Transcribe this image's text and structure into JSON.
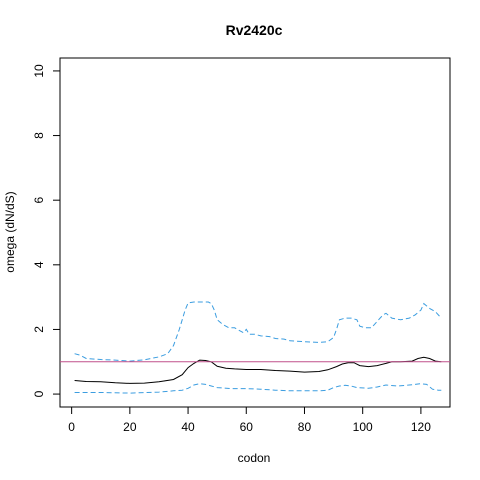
{
  "chart_data": {
    "type": "line",
    "title": "Rv2420c",
    "xlabel": "codon",
    "ylabel": "omega (dN/dS)",
    "xlim": [
      -4,
      130
    ],
    "ylim": [
      -0.4,
      10.4
    ],
    "x_ticks": [
      0,
      20,
      40,
      60,
      80,
      100,
      120
    ],
    "y_ticks": [
      0,
      2,
      4,
      6,
      8,
      10
    ],
    "reference_line": {
      "y": 1,
      "color": "#c0508c"
    },
    "grid": false,
    "series": [
      {
        "style": "solid",
        "color": "#000000",
        "points": [
          [
            1,
            0.42
          ],
          [
            5,
            0.39
          ],
          [
            10,
            0.38
          ],
          [
            15,
            0.35
          ],
          [
            20,
            0.33
          ],
          [
            25,
            0.34
          ],
          [
            30,
            0.38
          ],
          [
            35,
            0.45
          ],
          [
            38,
            0.6
          ],
          [
            40,
            0.82
          ],
          [
            42,
            0.95
          ],
          [
            44,
            1.05
          ],
          [
            46,
            1.04
          ],
          [
            48,
            1.0
          ],
          [
            50,
            0.86
          ],
          [
            53,
            0.8
          ],
          [
            56,
            0.78
          ],
          [
            60,
            0.76
          ],
          [
            65,
            0.76
          ],
          [
            70,
            0.73
          ],
          [
            75,
            0.71
          ],
          [
            80,
            0.68
          ],
          [
            85,
            0.7
          ],
          [
            88,
            0.75
          ],
          [
            91,
            0.85
          ],
          [
            93,
            0.93
          ],
          [
            95,
            0.97
          ],
          [
            97,
            0.97
          ],
          [
            99,
            0.88
          ],
          [
            102,
            0.85
          ],
          [
            105,
            0.88
          ],
          [
            108,
            0.95
          ],
          [
            110,
            1.0
          ],
          [
            113,
            1.0
          ],
          [
            117,
            1.02
          ],
          [
            119,
            1.1
          ],
          [
            121,
            1.14
          ],
          [
            123,
            1.1
          ],
          [
            125,
            1.02
          ],
          [
            127,
            1.0
          ]
        ]
      },
      {
        "style": "dashed",
        "color": "#3b9de0",
        "points": [
          [
            1,
            1.25
          ],
          [
            3,
            1.2
          ],
          [
            5,
            1.1
          ],
          [
            10,
            1.07
          ],
          [
            15,
            1.05
          ],
          [
            20,
            1.02
          ],
          [
            25,
            1.06
          ],
          [
            30,
            1.15
          ],
          [
            33,
            1.25
          ],
          [
            35,
            1.5
          ],
          [
            37,
            2.0
          ],
          [
            38,
            2.3
          ],
          [
            39,
            2.6
          ],
          [
            40,
            2.82
          ],
          [
            42,
            2.85
          ],
          [
            45,
            2.85
          ],
          [
            47,
            2.85
          ],
          [
            48,
            2.8
          ],
          [
            49,
            2.6
          ],
          [
            50,
            2.3
          ],
          [
            52,
            2.15
          ],
          [
            54,
            2.05
          ],
          [
            56,
            2.05
          ],
          [
            58,
            1.95
          ],
          [
            59,
            1.9
          ],
          [
            60,
            2.0
          ],
          [
            61,
            1.85
          ],
          [
            63,
            1.85
          ],
          [
            65,
            1.8
          ],
          [
            68,
            1.78
          ],
          [
            70,
            1.72
          ],
          [
            73,
            1.7
          ],
          [
            75,
            1.65
          ],
          [
            80,
            1.62
          ],
          [
            85,
            1.6
          ],
          [
            88,
            1.62
          ],
          [
            90,
            1.75
          ],
          [
            91,
            2.0
          ],
          [
            92,
            2.3
          ],
          [
            94,
            2.35
          ],
          [
            96,
            2.35
          ],
          [
            98,
            2.3
          ],
          [
            99,
            2.1
          ],
          [
            101,
            2.05
          ],
          [
            103,
            2.05
          ],
          [
            105,
            2.25
          ],
          [
            106,
            2.35
          ],
          [
            107,
            2.45
          ],
          [
            108,
            2.5
          ],
          [
            110,
            2.35
          ],
          [
            113,
            2.3
          ],
          [
            116,
            2.35
          ],
          [
            118,
            2.45
          ],
          [
            120,
            2.6
          ],
          [
            121,
            2.8
          ],
          [
            123,
            2.65
          ],
          [
            125,
            2.55
          ],
          [
            127,
            2.35
          ]
        ]
      },
      {
        "style": "dashed",
        "color": "#3b9de0",
        "points": [
          [
            1,
            0.05
          ],
          [
            10,
            0.05
          ],
          [
            20,
            0.03
          ],
          [
            30,
            0.06
          ],
          [
            35,
            0.1
          ],
          [
            38,
            0.12
          ],
          [
            40,
            0.18
          ],
          [
            42,
            0.28
          ],
          [
            44,
            0.32
          ],
          [
            46,
            0.3
          ],
          [
            48,
            0.25
          ],
          [
            50,
            0.2
          ],
          [
            55,
            0.17
          ],
          [
            60,
            0.17
          ],
          [
            65,
            0.15
          ],
          [
            70,
            0.12
          ],
          [
            75,
            0.1
          ],
          [
            80,
            0.1
          ],
          [
            85,
            0.1
          ],
          [
            88,
            0.12
          ],
          [
            90,
            0.2
          ],
          [
            92,
            0.25
          ],
          [
            94,
            0.27
          ],
          [
            96,
            0.25
          ],
          [
            98,
            0.2
          ],
          [
            102,
            0.18
          ],
          [
            105,
            0.22
          ],
          [
            108,
            0.28
          ],
          [
            112,
            0.25
          ],
          [
            116,
            0.28
          ],
          [
            118,
            0.3
          ],
          [
            120,
            0.32
          ],
          [
            122,
            0.3
          ],
          [
            124,
            0.15
          ],
          [
            126,
            0.12
          ],
          [
            127,
            0.12
          ]
        ]
      }
    ]
  }
}
